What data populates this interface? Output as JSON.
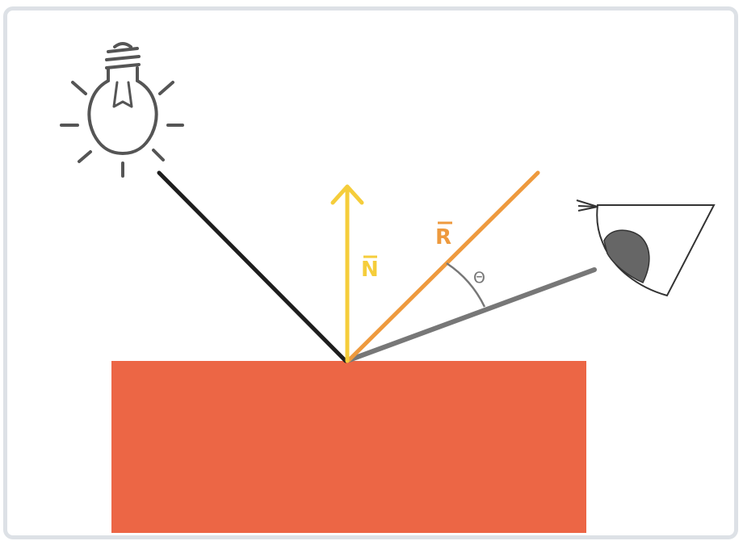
{
  "diagram": {
    "labels": {
      "normal": "N",
      "reflection": "R",
      "angle": "Θ"
    },
    "colors": {
      "surface": "#ec6645",
      "normal": "#f5cd3b",
      "reflection": "#ee9a3e",
      "view": "#777777",
      "incident": "#1e1e1e",
      "bulb": "#555555",
      "eye": "#555555",
      "frame": "#dde1e6"
    },
    "icons": [
      "light-bulb-icon",
      "eye-icon"
    ]
  }
}
